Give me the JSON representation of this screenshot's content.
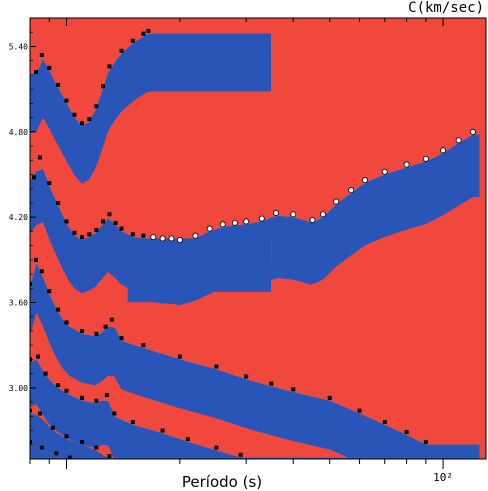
{
  "chart_data": {
    "type": "heatmap",
    "title": "",
    "xlabel": "Período (s)",
    "ylabel": "C(km/sec)",
    "x_scale": "log",
    "xlim": [
      8,
      130
    ],
    "ylim": [
      2.5,
      5.6
    ],
    "xticks": [
      {
        "value": 100,
        "label": "10²"
      }
    ],
    "yticks": [
      {
        "value": 5.4,
        "label": "5.40"
      },
      {
        "value": 4.8,
        "label": "4.80"
      },
      {
        "value": 4.2,
        "label": "4.20"
      },
      {
        "value": 3.6,
        "label": "3.60"
      },
      {
        "value": 3.0,
        "label": "3.00"
      }
    ],
    "colormap": [
      "#2a55b8",
      "#1a8ed8",
      "#22b3d8",
      "#30c4a8",
      "#2cb04c",
      "#8cc840",
      "#e6e233",
      "#f9a830",
      "#e84a3c",
      "#f0483c"
    ],
    "fundamental_mode": [
      {
        "x": 17,
        "y": 4.06
      },
      {
        "x": 18,
        "y": 4.05
      },
      {
        "x": 19,
        "y": 4.05
      },
      {
        "x": 20,
        "y": 4.04
      },
      {
        "x": 22,
        "y": 4.07
      },
      {
        "x": 24,
        "y": 4.12
      },
      {
        "x": 26,
        "y": 4.15
      },
      {
        "x": 28,
        "y": 4.16
      },
      {
        "x": 30,
        "y": 4.17
      },
      {
        "x": 33,
        "y": 4.19
      },
      {
        "x": 36,
        "y": 4.23
      },
      {
        "x": 40,
        "y": 4.22
      },
      {
        "x": 45,
        "y": 4.18
      },
      {
        "x": 48,
        "y": 4.22
      },
      {
        "x": 52,
        "y": 4.31
      },
      {
        "x": 57,
        "y": 4.39
      },
      {
        "x": 62,
        "y": 4.46
      },
      {
        "x": 70,
        "y": 4.52
      },
      {
        "x": 80,
        "y": 4.57
      },
      {
        "x": 90,
        "y": 4.61
      },
      {
        "x": 100,
        "y": 4.67
      },
      {
        "x": 110,
        "y": 4.74
      },
      {
        "x": 120,
        "y": 4.8
      }
    ],
    "higher_modes": [
      [
        {
          "x": 8.3,
          "y": 5.22
        },
        {
          "x": 8.6,
          "y": 5.34
        },
        {
          "x": 9.0,
          "y": 5.25
        },
        {
          "x": 9.5,
          "y": 5.13
        },
        {
          "x": 10,
          "y": 5.02
        },
        {
          "x": 10.5,
          "y": 4.92
        },
        {
          "x": 11,
          "y": 4.86
        },
        {
          "x": 11.5,
          "y": 4.89
        },
        {
          "x": 12,
          "y": 4.98
        },
        {
          "x": 12.5,
          "y": 5.12
        },
        {
          "x": 13,
          "y": 5.26
        },
        {
          "x": 14,
          "y": 5.37
        },
        {
          "x": 15,
          "y": 5.44
        },
        {
          "x": 16,
          "y": 5.49
        },
        {
          "x": 16.5,
          "y": 5.51
        }
      ],
      [
        {
          "x": 8.2,
          "y": 4.48
        },
        {
          "x": 8.5,
          "y": 4.62
        },
        {
          "x": 9.0,
          "y": 4.44
        },
        {
          "x": 9.5,
          "y": 4.3
        },
        {
          "x": 10,
          "y": 4.17
        },
        {
          "x": 10.5,
          "y": 4.09
        },
        {
          "x": 11,
          "y": 4.06
        },
        {
          "x": 11.5,
          "y": 4.08
        },
        {
          "x": 12,
          "y": 4.11
        },
        {
          "x": 12.5,
          "y": 4.17
        },
        {
          "x": 13,
          "y": 4.22
        },
        {
          "x": 13.5,
          "y": 4.16
        },
        {
          "x": 14,
          "y": 4.12
        },
        {
          "x": 15,
          "y": 4.08
        },
        {
          "x": 16,
          "y": 4.07
        }
      ],
      [
        {
          "x": 8.0,
          "y": 3.73
        },
        {
          "x": 8.3,
          "y": 3.9
        },
        {
          "x": 8.6,
          "y": 3.82
        },
        {
          "x": 9.0,
          "y": 3.68
        },
        {
          "x": 9.5,
          "y": 3.55
        },
        {
          "x": 10,
          "y": 3.46
        },
        {
          "x": 11,
          "y": 3.4
        },
        {
          "x": 12,
          "y": 3.38
        },
        {
          "x": 12.7,
          "y": 3.43
        },
        {
          "x": 13.2,
          "y": 3.48
        },
        {
          "x": 14,
          "y": 3.35
        },
        {
          "x": 16,
          "y": 3.3
        },
        {
          "x": 20,
          "y": 3.22
        },
        {
          "x": 25,
          "y": 3.15
        },
        {
          "x": 30,
          "y": 3.08
        },
        {
          "x": 35,
          "y": 3.03
        },
        {
          "x": 40,
          "y": 2.99
        },
        {
          "x": 50,
          "y": 2.93
        },
        {
          "x": 60,
          "y": 2.84
        },
        {
          "x": 70,
          "y": 2.76
        },
        {
          "x": 80,
          "y": 2.69
        },
        {
          "x": 90,
          "y": 2.62
        }
      ],
      [
        {
          "x": 8.0,
          "y": 3.2
        },
        {
          "x": 8.4,
          "y": 3.22
        },
        {
          "x": 8.8,
          "y": 3.1
        },
        {
          "x": 9.5,
          "y": 3.02
        },
        {
          "x": 10,
          "y": 2.98
        },
        {
          "x": 11,
          "y": 2.93
        },
        {
          "x": 12,
          "y": 2.91
        },
        {
          "x": 12.8,
          "y": 2.95
        },
        {
          "x": 13.4,
          "y": 2.82
        },
        {
          "x": 15,
          "y": 2.76
        },
        {
          "x": 18,
          "y": 2.7
        },
        {
          "x": 21,
          "y": 2.64
        },
        {
          "x": 25,
          "y": 2.58
        },
        {
          "x": 29,
          "y": 2.53
        }
      ],
      [
        {
          "x": 8.0,
          "y": 2.84
        },
        {
          "x": 8.5,
          "y": 2.82
        },
        {
          "x": 9.2,
          "y": 2.72
        },
        {
          "x": 10,
          "y": 2.66
        },
        {
          "x": 11,
          "y": 2.62
        },
        {
          "x": 12,
          "y": 2.58
        },
        {
          "x": 13,
          "y": 2.52
        }
      ],
      [
        {
          "x": 8.0,
          "y": 2.62
        },
        {
          "x": 8.6,
          "y": 2.58
        },
        {
          "x": 9.4,
          "y": 2.54
        },
        {
          "x": 10.2,
          "y": 2.51
        }
      ]
    ]
  }
}
